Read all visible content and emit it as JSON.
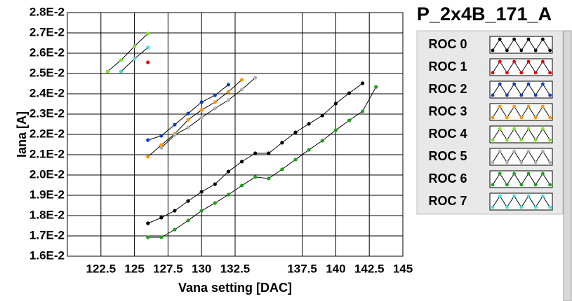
{
  "chart_data": {
    "type": "line",
    "title": "P_2x4B_171_A",
    "xlabel": "Vana setting [DAC]",
    "ylabel": "Iana [A]",
    "xlim": [
      120,
      145
    ],
    "xticks": [
      122.5,
      125,
      127.5,
      130,
      132.5,
      137.5,
      140,
      142.5,
      145
    ],
    "ylim": [
      0.016,
      0.028
    ],
    "yticks": [
      {
        "value": 0.016,
        "label": "1.6E-2"
      },
      {
        "value": 0.017,
        "label": "1.7E-2"
      },
      {
        "value": 0.018,
        "label": "1.8E-2"
      },
      {
        "value": 0.019,
        "label": "1.9E-2"
      },
      {
        "value": 0.02,
        "label": "2.0E-2"
      },
      {
        "value": 0.021,
        "label": "2.1E-2"
      },
      {
        "value": 0.022,
        "label": "2.2E-2"
      },
      {
        "value": 0.023,
        "label": "2.3E-2"
      },
      {
        "value": 0.024,
        "label": "2.4E-2"
      },
      {
        "value": 0.025,
        "label": "2.5E-2"
      },
      {
        "value": 0.026,
        "label": "2.6E-2"
      },
      {
        "value": 0.027,
        "label": "2.7E-2"
      },
      {
        "value": 0.028,
        "label": "2.8E-2"
      }
    ],
    "grid": true,
    "line_color": "#000000",
    "series": [
      {
        "name": "ROC 0",
        "color": "#000000",
        "x": [
          126,
          127,
          128,
          129,
          130,
          131,
          132,
          133,
          134,
          135,
          136,
          137,
          138,
          139,
          140,
          141,
          142
        ],
        "values": [
          0.01762,
          0.0179,
          0.01824,
          0.01872,
          0.01917,
          0.01955,
          0.02017,
          0.02066,
          0.02107,
          0.02107,
          0.02159,
          0.0221,
          0.02252,
          0.02293,
          0.02352,
          0.02403,
          0.02452
        ]
      },
      {
        "name": "ROC 1",
        "color": "#e00000",
        "x": [
          126
        ],
        "values": [
          0.02555
        ]
      },
      {
        "name": "ROC 2",
        "color": "#1040c0",
        "x": [
          126,
          127,
          128,
          129,
          130,
          131,
          132
        ],
        "values": [
          0.02172,
          0.02193,
          0.02248,
          0.02303,
          0.02359,
          0.02393,
          0.02445
        ]
      },
      {
        "name": "ROC 3",
        "color": "#ff9900",
        "x": [
          126,
          127,
          128,
          129,
          130,
          131,
          132,
          133
        ],
        "values": [
          0.0209,
          0.02148,
          0.02203,
          0.02272,
          0.0232,
          0.02359,
          0.0241,
          0.02469
        ]
      },
      {
        "name": "ROC 4",
        "color": "#80e030",
        "x": [
          123,
          124,
          125,
          126
        ],
        "values": [
          0.0251,
          0.02566,
          0.02634,
          0.02697
        ]
      },
      {
        "name": "ROC 5",
        "color": "#b0b0b0",
        "x": [
          127,
          128,
          129,
          130,
          131,
          132,
          133,
          134
        ],
        "values": [
          0.02134,
          0.02197,
          0.02234,
          0.02283,
          0.02328,
          0.02369,
          0.02421,
          0.02479
        ]
      },
      {
        "name": "ROC 6",
        "color": "#20a020",
        "x": [
          126,
          127,
          128,
          129,
          130,
          131,
          132,
          133,
          134,
          135,
          136,
          137,
          138,
          139,
          140,
          141,
          142,
          143
        ],
        "values": [
          0.01693,
          0.01693,
          0.01731,
          0.01776,
          0.01824,
          0.01862,
          0.01903,
          0.01948,
          0.0199,
          0.01983,
          0.02028,
          0.02076,
          0.02124,
          0.02169,
          0.02221,
          0.02269,
          0.02314,
          0.02434
        ]
      },
      {
        "name": "ROC 7",
        "color": "#40e0e0",
        "x": [
          124,
          125,
          126
        ],
        "values": [
          0.0251,
          0.02572,
          0.02628
        ]
      }
    ]
  }
}
